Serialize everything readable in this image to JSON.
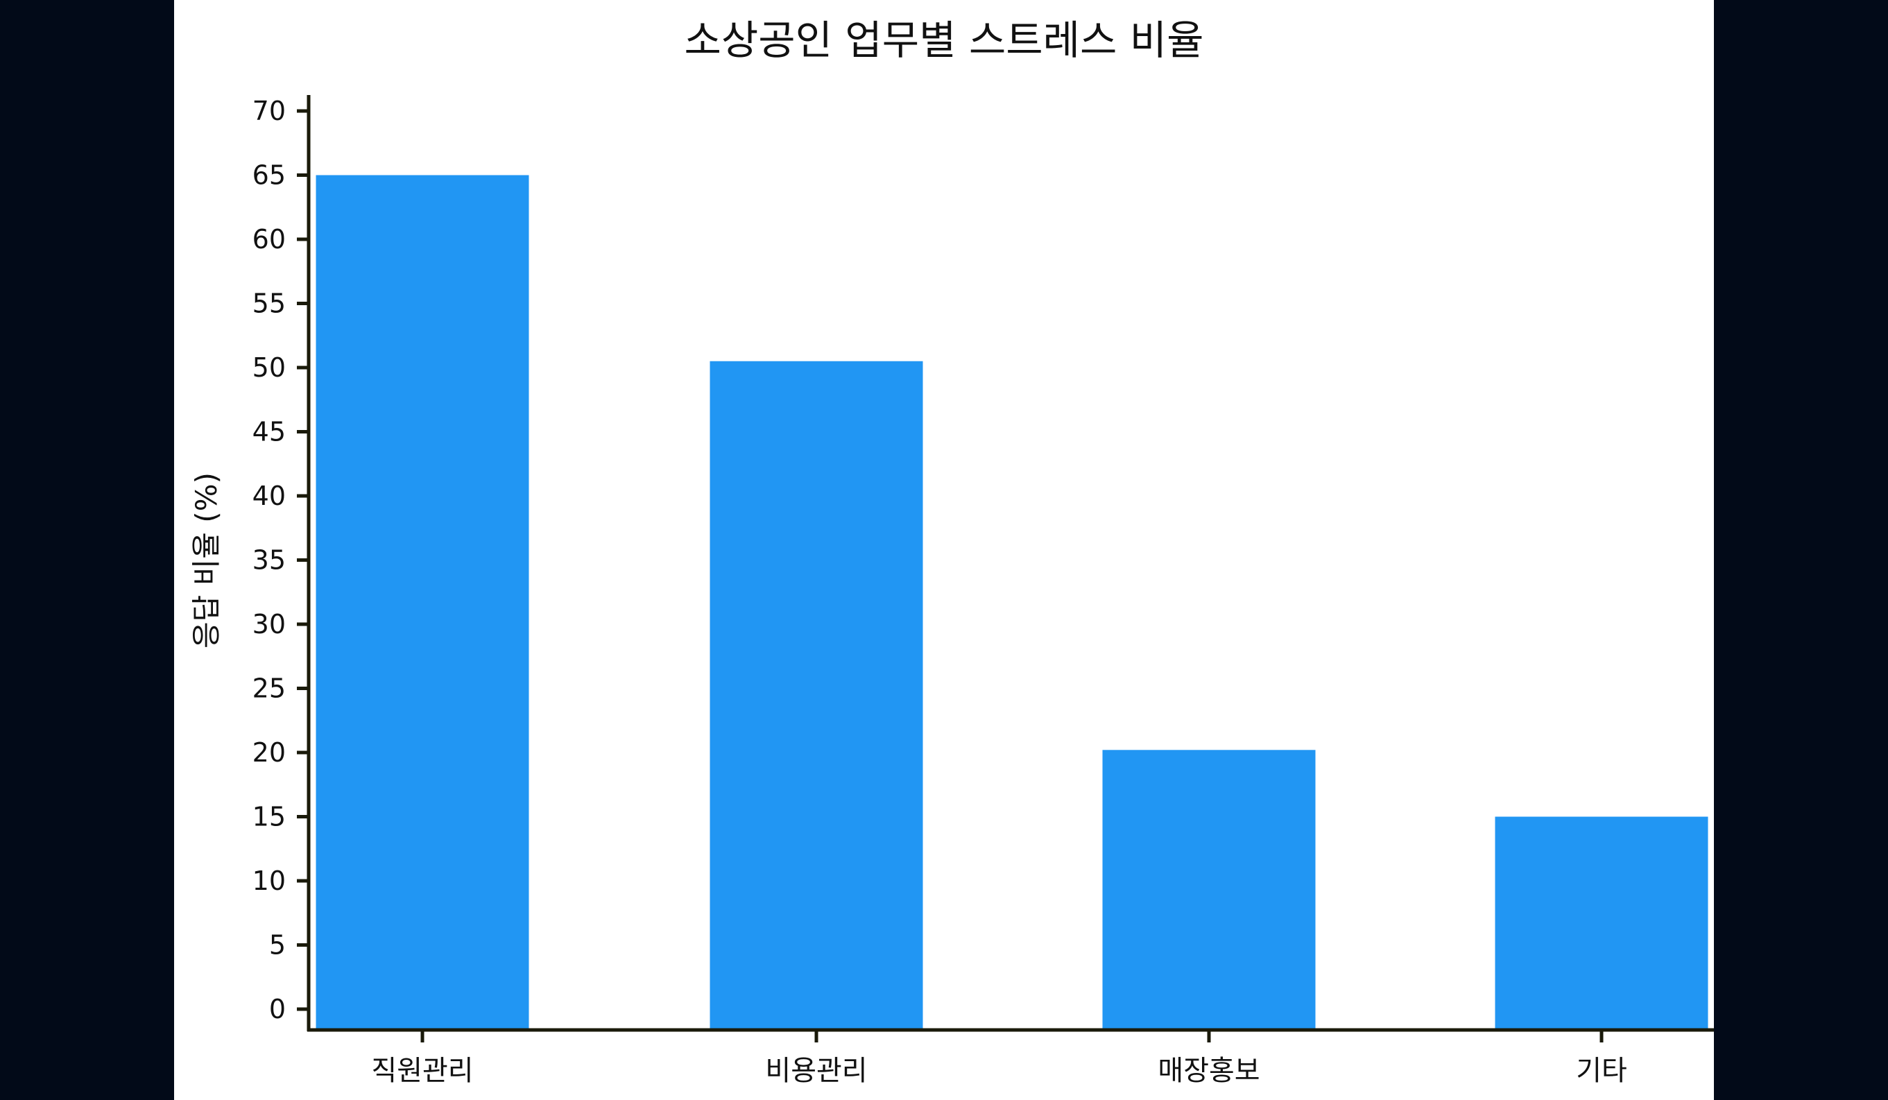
{
  "chart_data": {
    "type": "bar",
    "title": "소상공인 업무별 스트레스 비율",
    "xlabel": "",
    "ylabel": "응답 비율 (%)",
    "categories": [
      "직원관리",
      "비용관리",
      "매장홍보",
      "기타"
    ],
    "values": [
      65,
      50.5,
      20.2,
      15
    ],
    "ylim": [
      -1.4,
      71.2
    ],
    "yticks": [
      0,
      5,
      10,
      15,
      20,
      25,
      30,
      35,
      40,
      45,
      50,
      55,
      60,
      65,
      70
    ],
    "grid": false,
    "bar_color": "#2196f3",
    "axis_color": "#1a1a0a",
    "background_color": "#020a18"
  }
}
